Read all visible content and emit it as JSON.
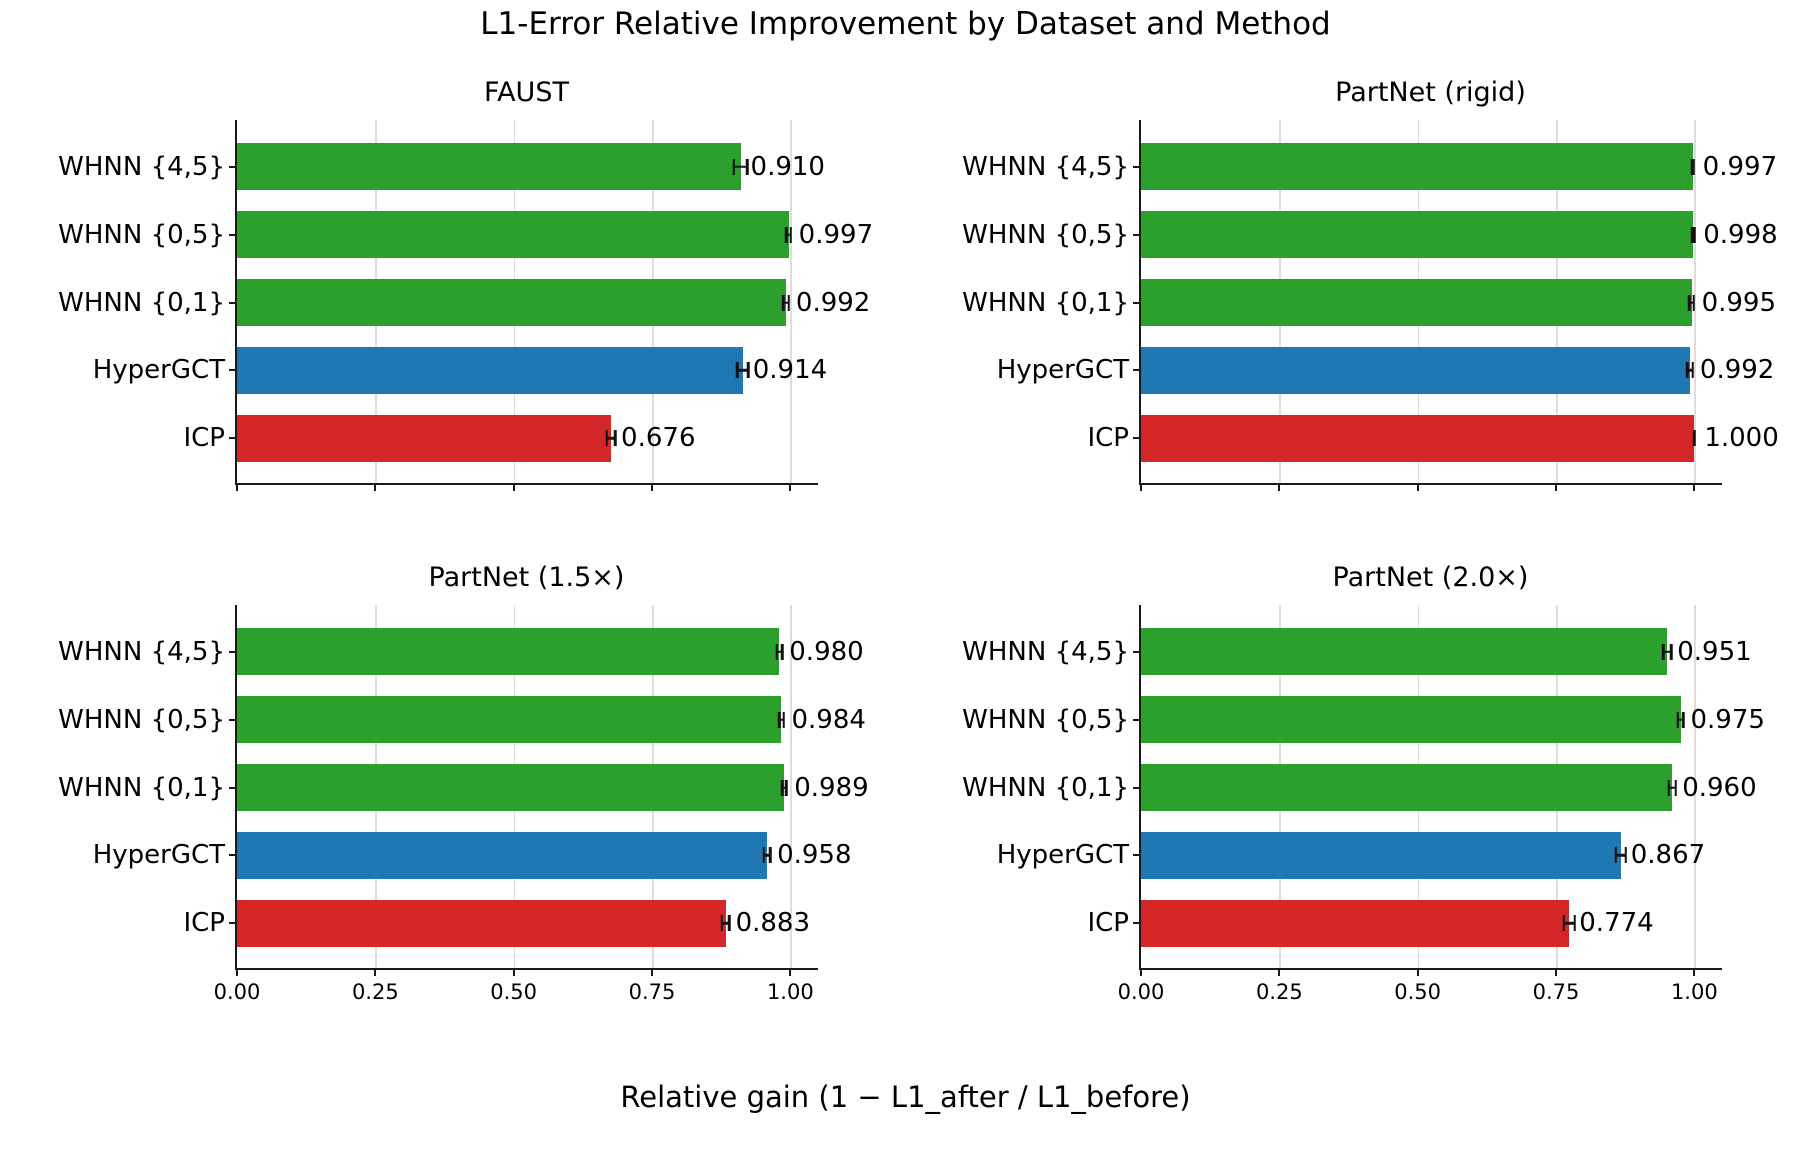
{
  "figure": {
    "title": "L1-Error Relative Improvement by Dataset and Method",
    "xlabel": "Relative gain (1 − L1_after / L1_before)"
  },
  "colors": {
    "whnn_green": "#2ca02c",
    "hypergct_blue": "#1f77b4",
    "icp_red": "#d62728",
    "gridline": "#dddddd",
    "spine": "#1a1a1a"
  },
  "chart_data": {
    "type": "bar",
    "orientation": "horizontal",
    "title": "L1-Error Relative Improvement by Dataset and Method",
    "xlabel": "Relative gain (1 − L1_after / L1_before)",
    "categories": [
      "WHNN {4,5}",
      "WHNN {0,5}",
      "WHNN {0,1}",
      "HyperGCT",
      "ICP"
    ],
    "bar_colors": [
      "#2ca02c",
      "#2ca02c",
      "#2ca02c",
      "#1f77b4",
      "#d62728"
    ],
    "xlim": [
      0,
      1.05
    ],
    "xticks": [
      0,
      0.25,
      0.5,
      0.75,
      1.0
    ],
    "xtick_labels": [
      "0.00",
      "0.25",
      "0.50",
      "0.75",
      "1.00"
    ],
    "grid": true,
    "subplots": [
      {
        "title": "FAUST",
        "values": [
          0.91,
          0.997,
          0.992,
          0.914,
          0.676
        ],
        "value_labels": [
          "0.910",
          "0.997",
          "0.992",
          "0.914",
          "0.676"
        ],
        "errors": [
          0.012,
          0.004,
          0.005,
          0.01,
          0.008
        ],
        "show_xtick_labels": false
      },
      {
        "title": "PartNet (rigid)",
        "values": [
          0.997,
          0.998,
          0.995,
          0.992,
          1.0
        ],
        "value_labels": [
          "0.997",
          "0.998",
          "0.995",
          "0.992",
          "1.000"
        ],
        "errors": [
          0.002,
          0.002,
          0.004,
          0.005,
          0.001
        ],
        "show_xtick_labels": false
      },
      {
        "title": "PartNet (1.5×)",
        "values": [
          0.98,
          0.984,
          0.989,
          0.958,
          0.883
        ],
        "value_labels": [
          "0.980",
          "0.984",
          "0.989",
          "0.958",
          "0.883"
        ],
        "errors": [
          0.005,
          0.004,
          0.004,
          0.006,
          0.007
        ],
        "show_xtick_labels": true
      },
      {
        "title": "PartNet (2.0×)",
        "values": [
          0.951,
          0.975,
          0.96,
          0.867,
          0.774
        ],
        "value_labels": [
          "0.951",
          "0.975",
          "0.960",
          "0.867",
          "0.774"
        ],
        "errors": [
          0.007,
          0.005,
          0.006,
          0.009,
          0.01
        ],
        "show_xtick_labels": true
      }
    ]
  }
}
